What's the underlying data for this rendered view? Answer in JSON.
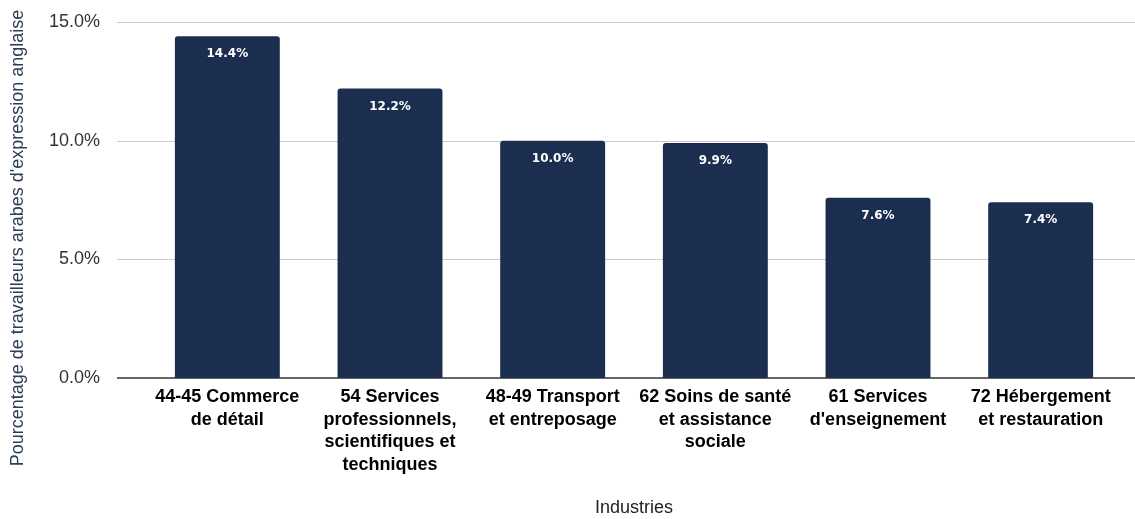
{
  "chart_data": {
    "type": "bar",
    "xlabel": "Industries",
    "ylabel": "Pourcentage de travailleurs arabes d'expression anglaise",
    "categories": [
      "44-45 Commerce de détail",
      "54 Services professionnels, scientifiques et techniques",
      "48-49 Transport et entreposage",
      "62 Soins de santé et assistance sociale",
      "61 Services d'enseignement",
      "72 Hébergement et restauration"
    ],
    "values": [
      14.4,
      12.2,
      10.0,
      9.9,
      7.6,
      7.4
    ],
    "value_labels": [
      "14.4%",
      "12.2%",
      "10.0%",
      "9.9%",
      "7.6%",
      "7.4%"
    ],
    "color": "#1b2e4f",
    "ylim": [
      0,
      15
    ],
    "yticks": [
      {
        "value": 0,
        "label": "0.0%"
      },
      {
        "value": 5,
        "label": "5.0%"
      },
      {
        "value": 10,
        "label": "10.0%"
      },
      {
        "value": 15,
        "label": "15.0%"
      }
    ],
    "grid": "y"
  }
}
